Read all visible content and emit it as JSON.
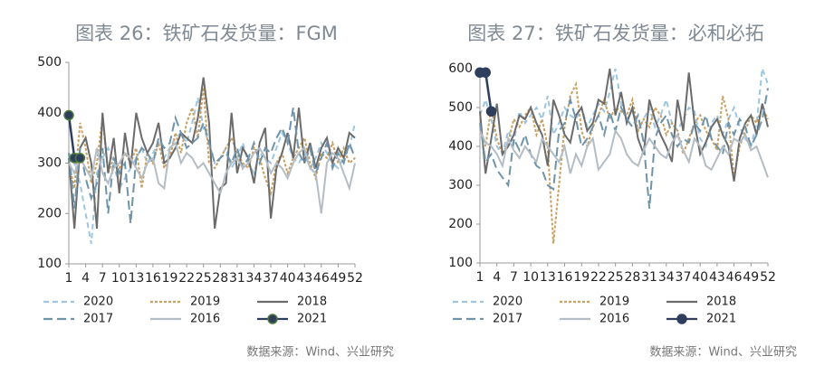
{
  "chart_data": [
    {
      "type": "line",
      "title": "图表 26：铁矿石发货量：FGM",
      "source": "数据来源：Wind、兴业研究",
      "x": [
        1,
        2,
        3,
        4,
        5,
        6,
        7,
        8,
        9,
        10,
        11,
        12,
        13,
        14,
        15,
        16,
        17,
        18,
        19,
        20,
        21,
        22,
        23,
        24,
        25,
        26,
        27,
        28,
        29,
        30,
        31,
        32,
        33,
        34,
        35,
        36,
        37,
        38,
        39,
        40,
        41,
        42,
        43,
        44,
        45,
        46,
        47,
        48,
        49,
        50,
        51,
        52
      ],
      "xlim": [
        1,
        52
      ],
      "xticks": [
        1,
        4,
        7,
        10,
        13,
        16,
        19,
        22,
        25,
        28,
        31,
        34,
        37,
        40,
        43,
        46,
        49,
        52
      ],
      "ylim": [
        100,
        500
      ],
      "yticks": [
        100,
        200,
        300,
        400,
        500
      ],
      "grid": false,
      "series": [
        {
          "name": "2020",
          "color": "#9ec6e0",
          "style": "dashed",
          "values": [
            320,
            300,
            260,
            200,
            140,
            280,
            310,
            330,
            300,
            250,
            270,
            290,
            310,
            330,
            300,
            320,
            340,
            310,
            330,
            350,
            360,
            340,
            380,
            430,
            370,
            340,
            300,
            310,
            330,
            290,
            310,
            340,
            300,
            280,
            320,
            310,
            300,
            330,
            360,
            340,
            310,
            300,
            320,
            290,
            310,
            340,
            320,
            300,
            290,
            310,
            330,
            380
          ]
        },
        {
          "name": "2019",
          "color": "#c9a063",
          "style": "dotted",
          "values": [
            300,
            250,
            380,
            330,
            260,
            300,
            390,
            280,
            310,
            290,
            320,
            300,
            330,
            250,
            320,
            300,
            340,
            290,
            310,
            360,
            320,
            380,
            410,
            350,
            450,
            300,
            290,
            310,
            330,
            350,
            320,
            300,
            290,
            330,
            310,
            270,
            240,
            300,
            320,
            280,
            310,
            330,
            350,
            300,
            270,
            320,
            310,
            340,
            300,
            330,
            300,
            310
          ]
        },
        {
          "name": "2018",
          "color": "#6b6b6b",
          "style": "solid",
          "values": [
            310,
            170,
            330,
            350,
            300,
            170,
            400,
            280,
            350,
            240,
            360,
            290,
            400,
            350,
            320,
            340,
            380,
            300,
            310,
            330,
            360,
            350,
            340,
            390,
            470,
            380,
            170,
            250,
            260,
            400,
            280,
            330,
            310,
            260,
            340,
            370,
            190,
            290,
            320,
            360,
            310,
            410,
            300,
            340,
            290,
            330,
            350,
            300,
            330,
            310,
            360,
            350
          ]
        },
        {
          "name": "2017",
          "color": "#6f94aa",
          "style": "longdash",
          "values": [
            320,
            210,
            330,
            270,
            230,
            260,
            330,
            200,
            310,
            280,
            300,
            180,
            310,
            330,
            320,
            300,
            350,
            330,
            340,
            390,
            360,
            330,
            340,
            350,
            380,
            340,
            300,
            310,
            320,
            300,
            330,
            290,
            310,
            340,
            300,
            330,
            320,
            350,
            370,
            340,
            410,
            320,
            300,
            330,
            280,
            310,
            340,
            290,
            320,
            300,
            340,
            310
          ]
        },
        {
          "name": "2016",
          "color": "#b4bcc4",
          "style": "solid",
          "values": [
            300,
            280,
            310,
            290,
            270,
            330,
            280,
            260,
            290,
            300,
            320,
            310,
            290,
            270,
            300,
            310,
            260,
            250,
            330,
            340,
            300,
            320,
            310,
            290,
            300,
            280,
            260,
            240,
            280,
            300,
            310,
            290,
            300,
            320,
            330,
            310,
            280,
            300,
            290,
            270,
            300,
            320,
            330,
            290,
            280,
            200,
            300,
            320,
            310,
            280,
            250,
            300
          ]
        },
        {
          "name": "2021",
          "color": "#2e3e5c",
          "style": "solid",
          "markers": true,
          "marker_color": "#4a7a3a",
          "values": [
            395,
            310,
            310,
            null,
            null,
            null,
            null,
            null,
            null,
            null,
            null,
            null,
            null,
            null,
            null,
            null,
            null,
            null,
            null,
            null,
            null,
            null,
            null,
            null,
            null,
            null,
            null,
            null,
            null,
            null,
            null,
            null,
            null,
            null,
            null,
            null,
            null,
            null,
            null,
            null,
            null,
            null,
            null,
            null,
            null,
            null,
            null,
            null,
            null,
            null,
            null,
            null
          ]
        }
      ]
    },
    {
      "type": "line",
      "title": "图表 27：铁矿石发货量：必和必拓",
      "source": "数据来源：Wind、兴业研究",
      "x": [
        1,
        2,
        3,
        4,
        5,
        6,
        7,
        8,
        9,
        10,
        11,
        12,
        13,
        14,
        15,
        16,
        17,
        18,
        19,
        20,
        21,
        22,
        23,
        24,
        25,
        26,
        27,
        28,
        29,
        30,
        31,
        32,
        33,
        34,
        35,
        36,
        37,
        38,
        39,
        40,
        41,
        42,
        43,
        44,
        45,
        46,
        47,
        48,
        49,
        50,
        51,
        52
      ],
      "xlim": [
        1,
        52
      ],
      "xticks": [
        1,
        4,
        7,
        10,
        13,
        16,
        19,
        22,
        25,
        28,
        31,
        34,
        37,
        40,
        43,
        46,
        49,
        52
      ],
      "ylim": [
        100,
        600
      ],
      "yticks": [
        100,
        200,
        300,
        400,
        500,
        600
      ],
      "grid": false,
      "series": [
        {
          "name": "2020",
          "color": "#9ec6e0",
          "style": "dashed",
          "values": [
            480,
            520,
            470,
            400,
            380,
            440,
            410,
            490,
            460,
            480,
            500,
            470,
            530,
            430,
            460,
            500,
            480,
            470,
            500,
            450,
            480,
            510,
            490,
            540,
            600,
            510,
            470,
            490,
            440,
            470,
            500,
            450,
            480,
            520,
            460,
            440,
            470,
            500,
            490,
            420,
            400,
            460,
            480,
            430,
            470,
            500,
            450,
            420,
            400,
            460,
            600,
            560
          ]
        },
        {
          "name": "2019",
          "color": "#c9a063",
          "style": "dotted",
          "values": [
            450,
            400,
            500,
            420,
            380,
            410,
            470,
            450,
            480,
            500,
            430,
            470,
            400,
            150,
            300,
            450,
            530,
            560,
            440,
            400,
            450,
            480,
            520,
            470,
            500,
            490,
            480,
            520,
            440,
            470,
            450,
            500,
            480,
            430,
            460,
            440,
            380,
            420,
            460,
            480,
            440,
            420,
            390,
            530,
            470,
            320,
            400,
            440,
            480,
            460,
            500,
            470
          ]
        },
        {
          "name": "2018",
          "color": "#6b6b6b",
          "style": "solid",
          "values": [
            490,
            330,
            420,
            510,
            380,
            400,
            430,
            480,
            470,
            500,
            460,
            430,
            350,
            520,
            480,
            430,
            410,
            480,
            500,
            440,
            460,
            520,
            510,
            600,
            480,
            540,
            460,
            500,
            420,
            380,
            520,
            470,
            430,
            400,
            360,
            520,
            440,
            590,
            460,
            380,
            410,
            450,
            470,
            430,
            400,
            310,
            420,
            460,
            480,
            430,
            510,
            450
          ]
        },
        {
          "name": "2017",
          "color": "#6f94aa",
          "style": "longdash",
          "values": [
            460,
            360,
            380,
            340,
            320,
            300,
            420,
            390,
            430,
            380,
            350,
            340,
            300,
            290,
            440,
            460,
            520,
            470,
            400,
            420,
            450,
            480,
            430,
            490,
            440,
            500,
            470,
            450,
            480,
            410,
            240,
            420,
            460,
            480,
            430,
            400,
            420,
            410,
            460,
            440,
            480,
            420,
            400,
            380,
            460,
            430,
            470,
            450,
            400,
            430,
            470,
            550
          ]
        },
        {
          "name": "2016",
          "color": "#b4bcc4",
          "style": "solid",
          "values": [
            440,
            410,
            400,
            380,
            350,
            420,
            390,
            370,
            400,
            380,
            360,
            420,
            400,
            380,
            360,
            400,
            330,
            380,
            350,
            400,
            420,
            340,
            360,
            380,
            440,
            420,
            380,
            360,
            350,
            390,
            420,
            400,
            380,
            370,
            410,
            430,
            390,
            360,
            420,
            400,
            350,
            340,
            370,
            400,
            380,
            420,
            410,
            430,
            390,
            400,
            360,
            320
          ]
        },
        {
          "name": "2021",
          "color": "#2e3e5c",
          "style": "solid",
          "markers": true,
          "marker_color": "#2e3e5c",
          "values": [
            590,
            590,
            490,
            null,
            null,
            null,
            null,
            null,
            null,
            null,
            null,
            null,
            null,
            null,
            null,
            null,
            null,
            null,
            null,
            null,
            null,
            null,
            null,
            null,
            null,
            null,
            null,
            null,
            null,
            null,
            null,
            null,
            null,
            null,
            null,
            null,
            null,
            null,
            null,
            null,
            null,
            null,
            null,
            null,
            null,
            null,
            null,
            null,
            null,
            null,
            null,
            null
          ]
        }
      ]
    }
  ]
}
